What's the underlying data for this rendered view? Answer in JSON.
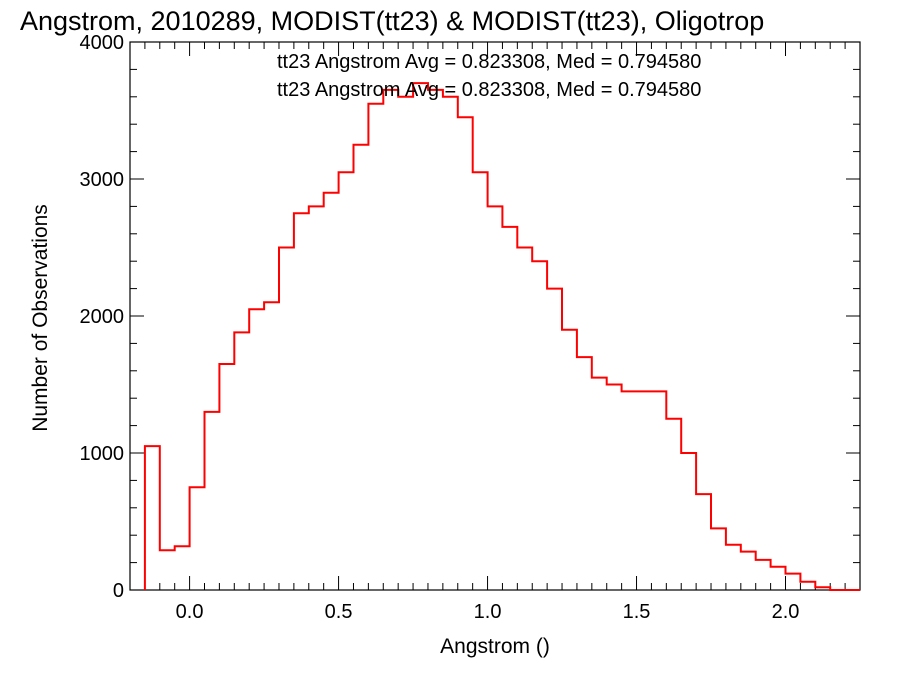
{
  "chart_data": {
    "type": "histogram-step",
    "title": "Angstrom, 2010289, MODIST(tt23) & MODIST(tt23), Oligotrop",
    "xlabel": "Angstrom ()",
    "ylabel": "Number of Observations",
    "xlim": [
      -0.2,
      2.25
    ],
    "ylim": [
      0,
      4000
    ],
    "xticks": [
      0.0,
      0.5,
      1.0,
      1.5,
      2.0
    ],
    "xtick_labels": [
      "0.0",
      "0.5",
      "1.0",
      "1.5",
      "2.0"
    ],
    "yticks": [
      0,
      1000,
      2000,
      3000,
      4000
    ],
    "ytick_labels": [
      "0",
      "1000",
      "2000",
      "3000",
      "4000"
    ],
    "grid": false,
    "annotations": [
      {
        "text": "tt23 Angstrom Avg = 0.823308, Med = 0.794580",
        "color": "#000000"
      },
      {
        "text": "tt23 Angstrom Avg = 0.823308, Med = 0.794580",
        "color": "#ff0000"
      }
    ],
    "series": [
      {
        "color": "#ff0000",
        "x": [
          -0.15,
          -0.1,
          -0.05,
          0.0,
          0.05,
          0.1,
          0.15,
          0.2,
          0.25,
          0.3,
          0.35,
          0.4,
          0.45,
          0.5,
          0.55,
          0.6,
          0.65,
          0.7,
          0.75,
          0.8,
          0.85,
          0.9,
          0.95,
          1.0,
          1.05,
          1.1,
          1.15,
          1.2,
          1.25,
          1.3,
          1.35,
          1.4,
          1.45,
          1.5,
          1.55,
          1.6,
          1.65,
          1.7,
          1.75,
          1.8,
          1.85,
          1.9,
          1.95,
          2.0,
          2.05,
          2.1,
          2.15,
          2.2,
          2.25
        ],
        "y": [
          1050,
          290,
          320,
          750,
          1300,
          1650,
          1880,
          2050,
          2100,
          2500,
          2750,
          2800,
          2900,
          3050,
          3250,
          3550,
          3650,
          3600,
          3700,
          3650,
          3600,
          3450,
          3050,
          2800,
          2650,
          2500,
          2400,
          2200,
          1900,
          1700,
          1550,
          1500,
          1450,
          1450,
          1450,
          1250,
          1000,
          700,
          450,
          330,
          280,
          220,
          170,
          120,
          60,
          20,
          0,
          0,
          0
        ]
      }
    ]
  }
}
